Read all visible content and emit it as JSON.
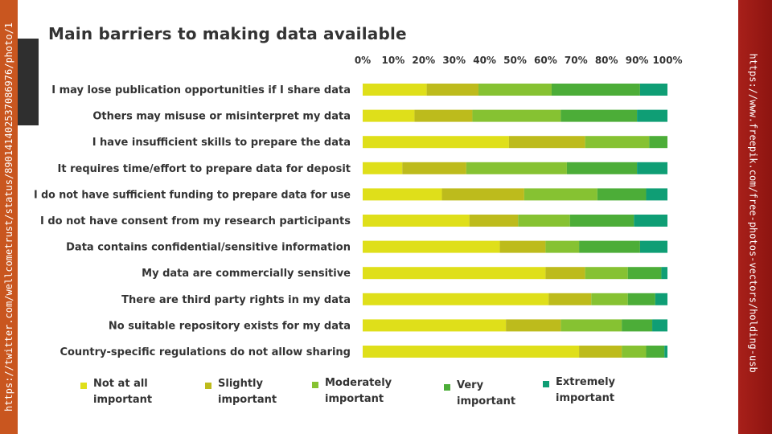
{
  "credits": {
    "left": "https://twitter.com/wellcometrust/status/890141402537086976/photo/1",
    "right": "https://www.freepik.com/free-photos-vectors/holding-usb"
  },
  "colors": {
    "left_strip": "#c9561f",
    "right_strip": "#a8201a"
  },
  "chart_data": {
    "type": "bar",
    "orientation": "horizontal",
    "stacked": true,
    "title": "Main barriers to making data available",
    "xlim": [
      0,
      100
    ],
    "x_ticks": [
      "0%",
      "10%",
      "20%",
      "30%",
      "40%",
      "50%",
      "60%",
      "70%",
      "80%",
      "90%",
      "100%"
    ],
    "legend_position": "bottom",
    "categories": [
      "I may lose publication opportunities if I share data",
      "Others may misuse or misinterpret my data",
      "I have insufficient skills to prepare the data",
      "It requires time/effort to prepare data for deposit",
      "I do not have sufficient funding to prepare data for use",
      "I do not have consent from my research participants",
      "Data contains confidential/sensitive information",
      "My data are commercially sensitive",
      "There are third party rights in my data",
      "No suitable repository exists for my data",
      "Country-specific regulations do not allow sharing"
    ],
    "series": [
      {
        "name": "Not at all important",
        "color": "#dfdf1a",
        "values": [
          21,
          17,
          48,
          13,
          26,
          35,
          45,
          60,
          61,
          47,
          71
        ]
      },
      {
        "name": "Slightly important",
        "color": "#bdbb1c",
        "values": [
          17,
          19,
          25,
          21,
          27,
          16,
          15,
          13,
          14,
          18,
          14
        ]
      },
      {
        "name": "Moderately important",
        "color": "#86c232",
        "values": [
          24,
          29,
          21,
          33,
          24,
          17,
          11,
          14,
          12,
          20,
          8
        ]
      },
      {
        "name": "Very important",
        "color": "#4cad38",
        "values": [
          29,
          25,
          6,
          23,
          16,
          21,
          20,
          11,
          9,
          10,
          6
        ]
      },
      {
        "name": "Extremely important",
        "color": "#0f9e75",
        "values": [
          9,
          10,
          0,
          10,
          7,
          11,
          9,
          2,
          4,
          5,
          1
        ]
      }
    ]
  }
}
